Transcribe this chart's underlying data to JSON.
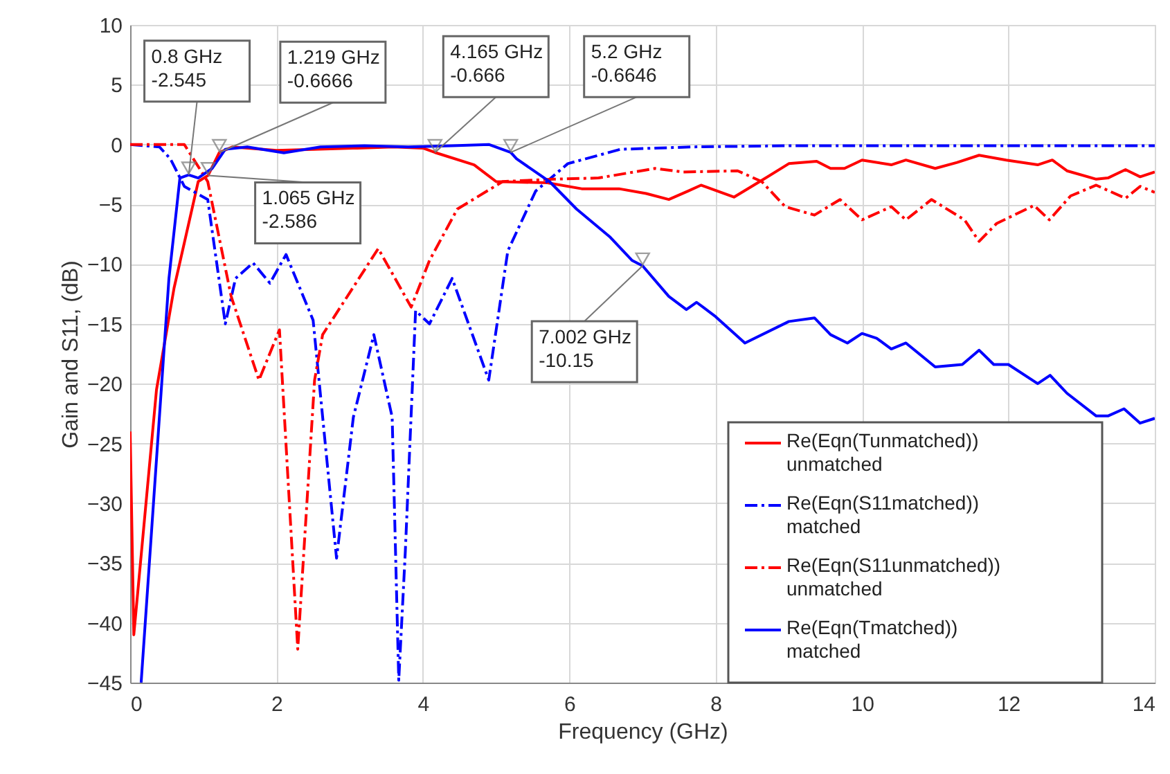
{
  "chart_data": {
    "type": "line",
    "xlabel": "Frequency (GHz)",
    "ylabel": "Gain and S11, (dB)",
    "xlim": [
      0,
      14
    ],
    "xticks": [
      0,
      2,
      4,
      6,
      8,
      10,
      12,
      14
    ],
    "ylim": [
      -45,
      10
    ],
    "yticks": [
      10,
      5,
      0,
      -5,
      -10,
      -15,
      -20,
      -25,
      -30,
      -35,
      -40,
      -45
    ],
    "grid": true,
    "legend": "bottom right",
    "marker": "none",
    "series": [
      {
        "name": "Re(Eqn(Tunmatched))\nunmatched",
        "color": "#ff0000",
        "line_style": "solid",
        "x": [
          0,
          0.05,
          0.36,
          0.6,
          0.93,
          1.065,
          1.219,
          1.4,
          2.0,
          2.5,
          3.1,
          3.6,
          4.0,
          4.165,
          4.7,
          5.0,
          5.7,
          6.17,
          6.68,
          7.05,
          7.36,
          7.62,
          7.8,
          8.25,
          8.63,
          9.0,
          9.38,
          9.57,
          9.76,
          10.0,
          10.4,
          10.6,
          11.0,
          11.3,
          11.6,
          11.97,
          12.4,
          12.6,
          12.8,
          13.2,
          13.36,
          13.6,
          13.8,
          14
        ],
        "values": [
          -24,
          -41,
          -20.5,
          -12,
          -3.1,
          -2.586,
          -0.6666,
          -0.2,
          -0.5,
          -0.4,
          -0.3,
          -0.2,
          -0.3,
          -0.666,
          -1.7,
          -3.1,
          -3.2,
          -3.7,
          -3.7,
          -4.1,
          -4.6,
          -3.9,
          -3.4,
          -4.4,
          -3.0,
          -1.6,
          -1.4,
          -2.0,
          -2.0,
          -1.3,
          -1.7,
          -1.3,
          -2.0,
          -1.5,
          -0.9,
          -1.3,
          -1.7,
          -1.3,
          -2.2,
          -2.9,
          -2.8,
          -2.1,
          -2.7,
          -2.3
        ]
      },
      {
        "name": "Re(Eqn(S11matched))\nmatched",
        "color": "#0000ff",
        "line_style": "dashdot",
        "x": [
          0,
          0.4,
          0.55,
          0.74,
          1.06,
          1.3,
          1.44,
          1.68,
          1.91,
          2.13,
          2.5,
          2.82,
          3.05,
          3.33,
          3.58,
          3.67,
          3.76,
          3.9,
          4.09,
          4.4,
          4.9,
          5.16,
          5.54,
          5.98,
          6.7,
          7.7,
          9,
          11,
          14
        ],
        "values": [
          0,
          -0.2,
          -1.2,
          -3.5,
          -4.6,
          -15,
          -11.2,
          -9.9,
          -11.6,
          -9.2,
          -14.7,
          -34.6,
          -22.8,
          -15.9,
          -22.8,
          -44.8,
          -34,
          -13.9,
          -15,
          -11.2,
          -19.7,
          -8.9,
          -3.9,
          -1.6,
          -0.4,
          -0.2,
          -0.1,
          -0.1,
          -0.1
        ]
      },
      {
        "name": "Re(Eqn(S11unmatched))\nunmatched",
        "color": "#ff0000",
        "line_style": "dashdot",
        "x": [
          0,
          0.5,
          0.74,
          1.06,
          1.38,
          1.76,
          2.04,
          2.29,
          2.52,
          2.63,
          3.39,
          3.84,
          4.09,
          4.47,
          5.09,
          5.79,
          6.4,
          7.17,
          7.55,
          8.3,
          8.63,
          8.95,
          9.35,
          9.7,
          10.0,
          10.4,
          10.6,
          10.95,
          11.4,
          11.6,
          11.84,
          12.35,
          12.56,
          12.85,
          13.2,
          13.6,
          13.8,
          14
        ],
        "values": [
          0,
          0,
          0,
          -3.1,
          -12.7,
          -19.7,
          -15.5,
          -42.2,
          -19.7,
          -15.9,
          -8.7,
          -13.6,
          -9.7,
          -5.4,
          -3.1,
          -2.9,
          -2.8,
          -2.0,
          -2.3,
          -2.2,
          -3.1,
          -5.2,
          -5.9,
          -4.6,
          -6.3,
          -5.2,
          -6.3,
          -4.6,
          -6.3,
          -8.1,
          -6.6,
          -5.1,
          -6.3,
          -4.3,
          -3.4,
          -4.5,
          -3.5,
          -4.0
        ]
      },
      {
        "name": "Re(Eqn(Tmatched))\nmatched",
        "color": "#0000ff",
        "line_style": "solid",
        "x": [
          0.15,
          0.53,
          0.68,
          0.8,
          0.93,
          1.12,
          1.3,
          1.6,
          2.1,
          2.6,
          3.2,
          3.8,
          4.4,
          4.9,
          5.2,
          5.28,
          5.73,
          6.1,
          6.55,
          6.86,
          7.002,
          7.36,
          7.6,
          7.74,
          8.0,
          8.4,
          9.0,
          9.35,
          9.57,
          9.8,
          10.0,
          10.2,
          10.4,
          10.6,
          11.0,
          11.37,
          11.6,
          11.8,
          12.0,
          12.4,
          12.57,
          12.8,
          13.2,
          13.36,
          13.58,
          13.8,
          14
        ],
        "values": [
          -45,
          -11.2,
          -2.8,
          -2.545,
          -2.8,
          -2.0,
          -0.4,
          -0.2,
          -0.7,
          -0.2,
          -0.1,
          -0.2,
          -0.1,
          0,
          -0.6646,
          -1.2,
          -3.1,
          -5.4,
          -7.7,
          -9.7,
          -10.15,
          -12.7,
          -13.8,
          -13.2,
          -14.4,
          -16.6,
          -14.8,
          -14.5,
          -15.9,
          -16.6,
          -15.8,
          -16.2,
          -17.1,
          -16.6,
          -18.6,
          -18.4,
          -17.2,
          -18.4,
          -18.4,
          -20.0,
          -19.3,
          -20.8,
          -22.7,
          -22.7,
          -22.1,
          -23.3,
          -22.9
        ]
      }
    ],
    "annotations": [
      {
        "text": "0.8 GHz\n-2.545",
        "x": 0.8,
        "y": -2.545
      },
      {
        "text": "1.219 GHz\n-0.6666",
        "x": 1.219,
        "y": -0.6666
      },
      {
        "text": "1.065 GHz\n-2.586",
        "x": 1.065,
        "y": -2.586
      },
      {
        "text": "4.165 GHz\n-0.666",
        "x": 4.165,
        "y": -0.666
      },
      {
        "text": "5.2 GHz\n-0.6646",
        "x": 5.2,
        "y": -0.6646
      },
      {
        "text": "7.002 GHz\n-10.15",
        "x": 7.002,
        "y": -10.15
      }
    ]
  }
}
